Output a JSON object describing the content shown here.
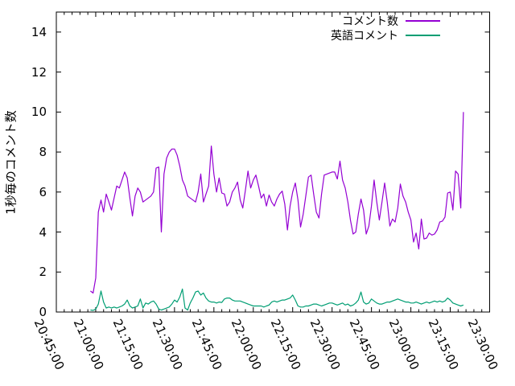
{
  "chart_data": {
    "type": "line",
    "title": "",
    "xlabel": "",
    "ylabel": "1秒毎のコメント数",
    "grid": false,
    "legend_position": "top-right-inside",
    "x_axis": {
      "tick_labels": [
        "20:45:00",
        "21:00:00",
        "21:15:00",
        "21:30:00",
        "21:45:00",
        "22:00:00",
        "22:15:00",
        "22:30:00",
        "22:45:00",
        "23:00:00",
        "23:15:00",
        "23:30:00"
      ],
      "tick_interval_minutes": 15,
      "minor_tick_interval_minutes": 3,
      "range_minutes": [
        0,
        165
      ]
    },
    "y_axis": {
      "ticks": [
        0,
        2,
        4,
        6,
        8,
        10,
        12,
        14
      ],
      "range": [
        0,
        15
      ]
    },
    "series": [
      {
        "name": "コメント数",
        "color": "#9400d3",
        "start_minute": 13,
        "step_minutes": 1,
        "values": [
          1.05,
          0.95,
          1.7,
          5.0,
          5.6,
          5.0,
          5.9,
          5.5,
          5.1,
          5.7,
          6.3,
          6.2,
          6.6,
          7.0,
          6.7,
          5.7,
          4.8,
          5.8,
          6.2,
          6.0,
          5.5,
          5.6,
          5.7,
          5.8,
          6.0,
          7.2,
          7.25,
          4.0,
          6.9,
          7.7,
          8.0,
          8.15,
          8.15,
          7.85,
          7.3,
          6.6,
          6.3,
          5.8,
          5.7,
          5.6,
          5.5,
          6.0,
          6.9,
          5.5,
          5.9,
          6.3,
          8.3,
          6.9,
          6.0,
          6.7,
          5.95,
          5.9,
          5.3,
          5.5,
          6.0,
          6.2,
          6.5,
          5.6,
          5.2,
          6.1,
          7.05,
          6.2,
          6.6,
          6.85,
          6.3,
          5.7,
          5.9,
          5.3,
          5.85,
          5.5,
          5.3,
          5.65,
          5.9,
          6.05,
          5.4,
          4.1,
          5.3,
          6.0,
          6.45,
          5.6,
          4.25,
          4.9,
          5.8,
          6.75,
          6.85,
          5.9,
          5.0,
          4.7,
          5.9,
          6.85,
          6.9,
          6.95,
          7.0,
          7.0,
          6.65,
          7.55,
          6.6,
          6.2,
          5.5,
          4.6,
          3.9,
          4.0,
          4.9,
          5.65,
          5.1,
          3.9,
          4.3,
          5.3,
          6.6,
          5.5,
          4.6,
          5.5,
          6.45,
          5.5,
          4.3,
          4.65,
          4.5,
          5.2,
          6.4,
          5.8,
          5.5,
          5.0,
          4.6,
          3.5,
          3.95,
          3.15,
          4.65,
          3.65,
          3.7,
          3.95,
          3.85,
          3.9,
          4.1,
          4.5,
          4.55,
          4.75,
          5.95,
          6.0,
          5.1,
          7.05,
          6.9,
          5.2,
          10.0
        ]
      },
      {
        "name": "英語コメント",
        "color": "#009e73",
        "start_minute": 13,
        "step_minutes": 1,
        "values": [
          0.1,
          0.08,
          0.15,
          0.4,
          1.05,
          0.5,
          0.2,
          0.25,
          0.2,
          0.25,
          0.2,
          0.25,
          0.3,
          0.4,
          0.6,
          0.3,
          0.2,
          0.25,
          0.3,
          0.65,
          0.2,
          0.45,
          0.4,
          0.5,
          0.55,
          0.4,
          0.15,
          0.1,
          0.15,
          0.2,
          0.25,
          0.4,
          0.6,
          0.5,
          0.75,
          1.15,
          0.2,
          0.1,
          0.45,
          0.7,
          1.0,
          1.05,
          0.85,
          0.95,
          0.7,
          0.55,
          0.5,
          0.5,
          0.45,
          0.5,
          0.48,
          0.65,
          0.7,
          0.7,
          0.6,
          0.55,
          0.55,
          0.55,
          0.5,
          0.45,
          0.4,
          0.35,
          0.3,
          0.3,
          0.3,
          0.3,
          0.25,
          0.3,
          0.35,
          0.5,
          0.55,
          0.5,
          0.55,
          0.6,
          0.6,
          0.65,
          0.7,
          0.85,
          0.6,
          0.3,
          0.25,
          0.25,
          0.3,
          0.3,
          0.35,
          0.4,
          0.4,
          0.35,
          0.3,
          0.35,
          0.4,
          0.45,
          0.45,
          0.4,
          0.35,
          0.4,
          0.45,
          0.35,
          0.4,
          0.3,
          0.35,
          0.45,
          0.6,
          1.0,
          0.5,
          0.4,
          0.45,
          0.65,
          0.55,
          0.45,
          0.4,
          0.4,
          0.45,
          0.5,
          0.5,
          0.55,
          0.6,
          0.65,
          0.6,
          0.55,
          0.5,
          0.5,
          0.45,
          0.45,
          0.5,
          0.45,
          0.4,
          0.45,
          0.5,
          0.45,
          0.5,
          0.55,
          0.5,
          0.55,
          0.5,
          0.55,
          0.7,
          0.6,
          0.45,
          0.4,
          0.35,
          0.3,
          0.35
        ]
      }
    ]
  },
  "colors": {
    "background": "#ffffff",
    "axis": "#000000",
    "text": "#000000"
  }
}
